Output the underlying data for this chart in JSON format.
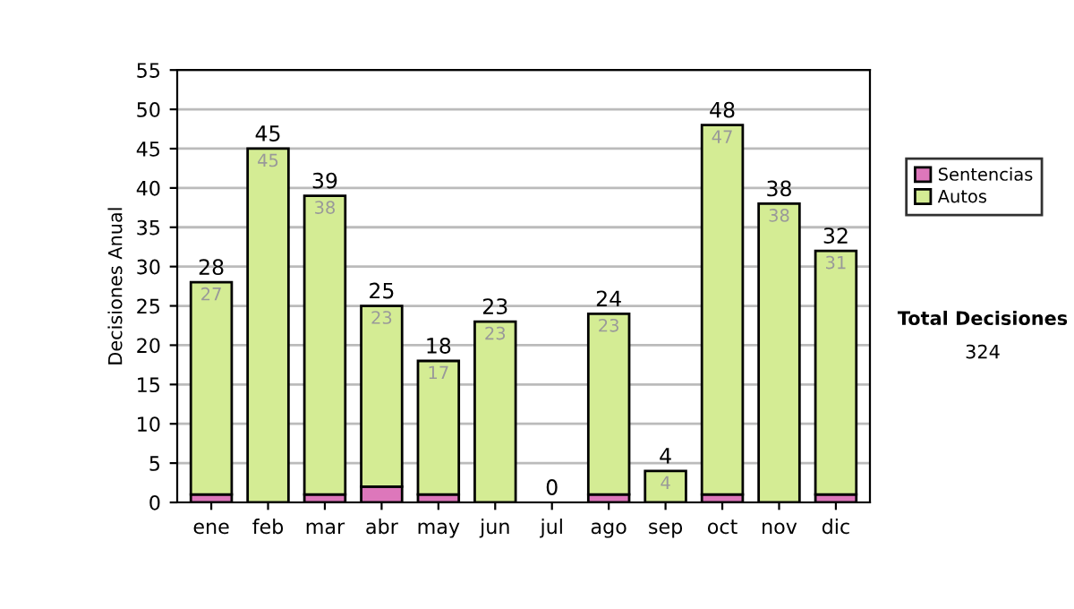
{
  "chart_data": {
    "type": "bar",
    "stacked": true,
    "ylabel": "Decisiones Anual",
    "categories": [
      "ene",
      "feb",
      "mar",
      "abr",
      "may",
      "jun",
      "jul",
      "ago",
      "sep",
      "oct",
      "nov",
      "dic"
    ],
    "series": [
      {
        "name": "Sentencias",
        "color": "#dd77bb",
        "values": [
          1,
          0,
          1,
          2,
          1,
          0,
          0,
          1,
          0,
          1,
          0,
          1
        ]
      },
      {
        "name": "Autos",
        "color": "#d4ec94",
        "values": [
          27,
          45,
          38,
          23,
          17,
          23,
          0,
          23,
          4,
          47,
          38,
          31
        ],
        "value_labels": [
          "27",
          "45",
          "38",
          "23",
          "17",
          "23",
          null,
          "23",
          "4",
          "47",
          "38",
          "31"
        ]
      }
    ],
    "totals": [
      "28",
      "45",
      "39",
      "25",
      "18",
      "23",
      "0",
      "24",
      "4",
      "48",
      "38",
      "32"
    ],
    "ylim": [
      0,
      55
    ],
    "yticks": [
      0,
      5,
      10,
      15,
      20,
      25,
      30,
      35,
      40,
      45,
      50,
      55
    ],
    "grid": "y",
    "legend": "right",
    "annotations": [
      "Total Decisiones",
      "324"
    ]
  }
}
